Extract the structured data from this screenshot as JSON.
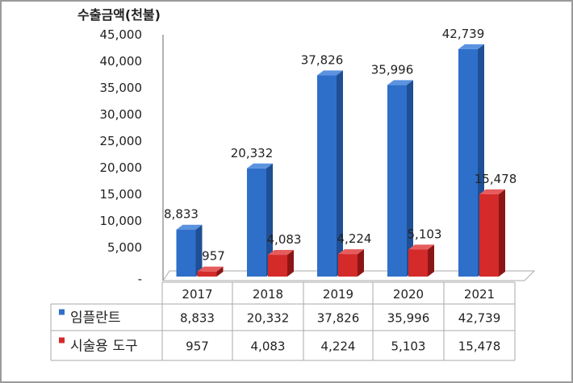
{
  "chart_data": {
    "type": "bar",
    "title": "",
    "ylabel": "수출금액(천불)",
    "xlabel": "",
    "ylim": [
      0,
      45000
    ],
    "yticks": [
      "-",
      "5,000",
      "10,000",
      "15,000",
      "20,000",
      "25,000",
      "30,000",
      "35,000",
      "40,000",
      "45,000"
    ],
    "categories": [
      "2017",
      "2018",
      "2019",
      "2020",
      "2021"
    ],
    "series": [
      {
        "name": "임플란트",
        "color": "#2e6fc9",
        "values": [
          8833,
          20332,
          37826,
          35996,
          42739
        ],
        "labels": [
          "8,833",
          "20,332",
          "37,826",
          "35,996",
          "42,739"
        ]
      },
      {
        "name": "시술용 도구",
        "color": "#d42a2a",
        "values": [
          957,
          4083,
          4224,
          5103,
          15478
        ],
        "labels": [
          "957",
          "4,083",
          "4,224",
          "5,103",
          "15,478"
        ]
      }
    ],
    "grid": false,
    "legend": "data-table",
    "style": "3d-clustered-column"
  }
}
